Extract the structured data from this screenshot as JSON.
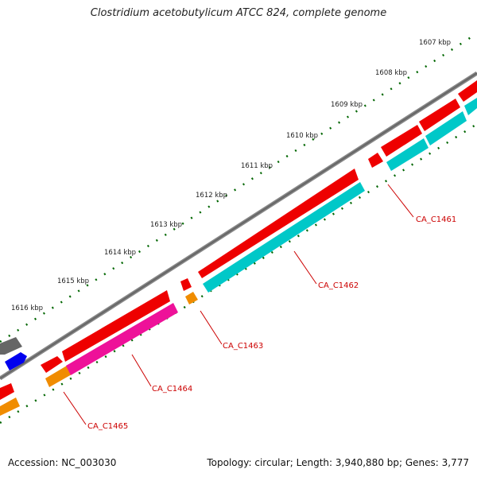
{
  "title": "Clostridium acetobutylicum ATCC 824, complete genome",
  "footer": {
    "accession": "Accession: NC_003030",
    "summary": "Topology: circular; Length: 3,940,880 bp; Genes: 3,777"
  },
  "scale_ticks": [
    {
      "label": "1607 kbp"
    },
    {
      "label": "1608 kbp"
    },
    {
      "label": "1609 kbp"
    },
    {
      "label": "1610 kbp"
    },
    {
      "label": "1611 kbp"
    },
    {
      "label": "1612 kbp"
    },
    {
      "label": "1613 kbp"
    },
    {
      "label": "1614 kbp"
    },
    {
      "label": "1615 kbp"
    },
    {
      "label": "1616 kbp"
    }
  ],
  "gene_labels": [
    {
      "label": "CA_C1461"
    },
    {
      "label": "CA_C1462"
    },
    {
      "label": "CA_C1463"
    },
    {
      "label": "CA_C1464"
    },
    {
      "label": "CA_C1465"
    }
  ],
  "colors": {
    "backbone": "#7a7a7a",
    "cds": "#ee0000",
    "gene_cyan": "#00c8c8",
    "gene_magenta": "#ee1199",
    "gene_orange": "#f08c00",
    "gene_blue": "#0000ee",
    "gene_gray": "#666666",
    "dots": "#006600",
    "label": "#cc0000"
  }
}
